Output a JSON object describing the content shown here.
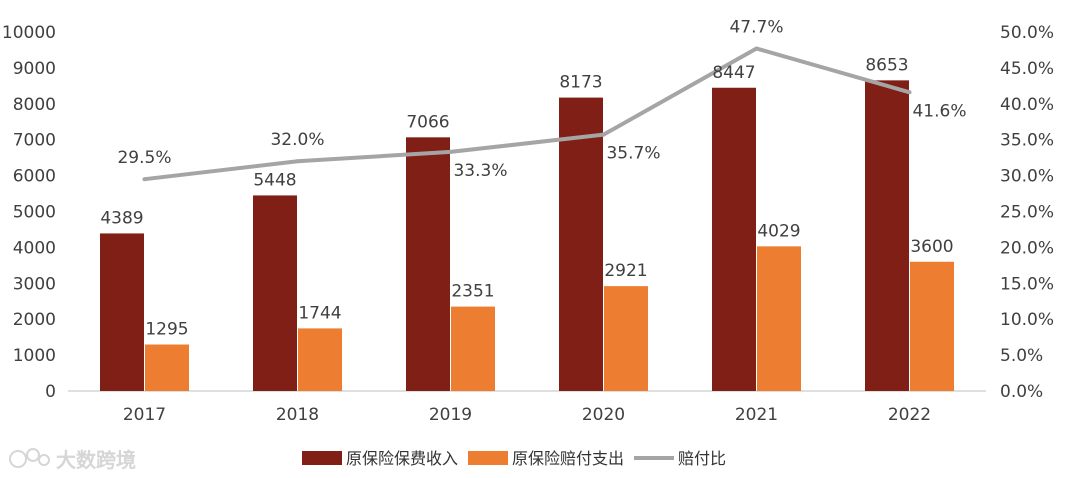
{
  "chart_data": {
    "type": "bar",
    "categories": [
      "2017",
      "2018",
      "2019",
      "2020",
      "2021",
      "2022"
    ],
    "series": [
      {
        "name": "原保险保费收入",
        "kind": "bar",
        "color": "#7f1f15",
        "values": [
          4389,
          5448,
          7066,
          8173,
          8447,
          8653
        ],
        "labels": [
          "4389",
          "5448",
          "7066",
          "8173",
          "8447",
          "8653"
        ]
      },
      {
        "name": "原保险赔付支出",
        "kind": "bar",
        "color": "#ed7d31",
        "values": [
          1295,
          1744,
          2351,
          2921,
          4029,
          3600
        ],
        "labels": [
          "1295",
          "1744",
          "2351",
          "2921",
          "4029",
          "3600"
        ]
      },
      {
        "name": "赔付比",
        "kind": "line",
        "axis": "right",
        "color": "#a5a5a5",
        "values": [
          29.5,
          32.0,
          33.3,
          35.7,
          47.7,
          41.6
        ],
        "labels": [
          "29.5%",
          "32.0%",
          "33.3%",
          "35.7%",
          "47.7%",
          "41.6%"
        ]
      }
    ],
    "y_left": {
      "min": 0,
      "max": 10000,
      "ticks": [
        "0",
        "1000",
        "2000",
        "3000",
        "4000",
        "5000",
        "6000",
        "7000",
        "8000",
        "9000",
        "10000"
      ]
    },
    "y_right": {
      "min": 0,
      "max": 50,
      "ticks": [
        "0.0%",
        "5.0%",
        "10.0%",
        "15.0%",
        "20.0%",
        "25.0%",
        "30.0%",
        "35.0%",
        "40.0%",
        "45.0%",
        "50.0%"
      ]
    },
    "legend_position": "bottom",
    "grid": false
  },
  "watermark": "大数跨境"
}
